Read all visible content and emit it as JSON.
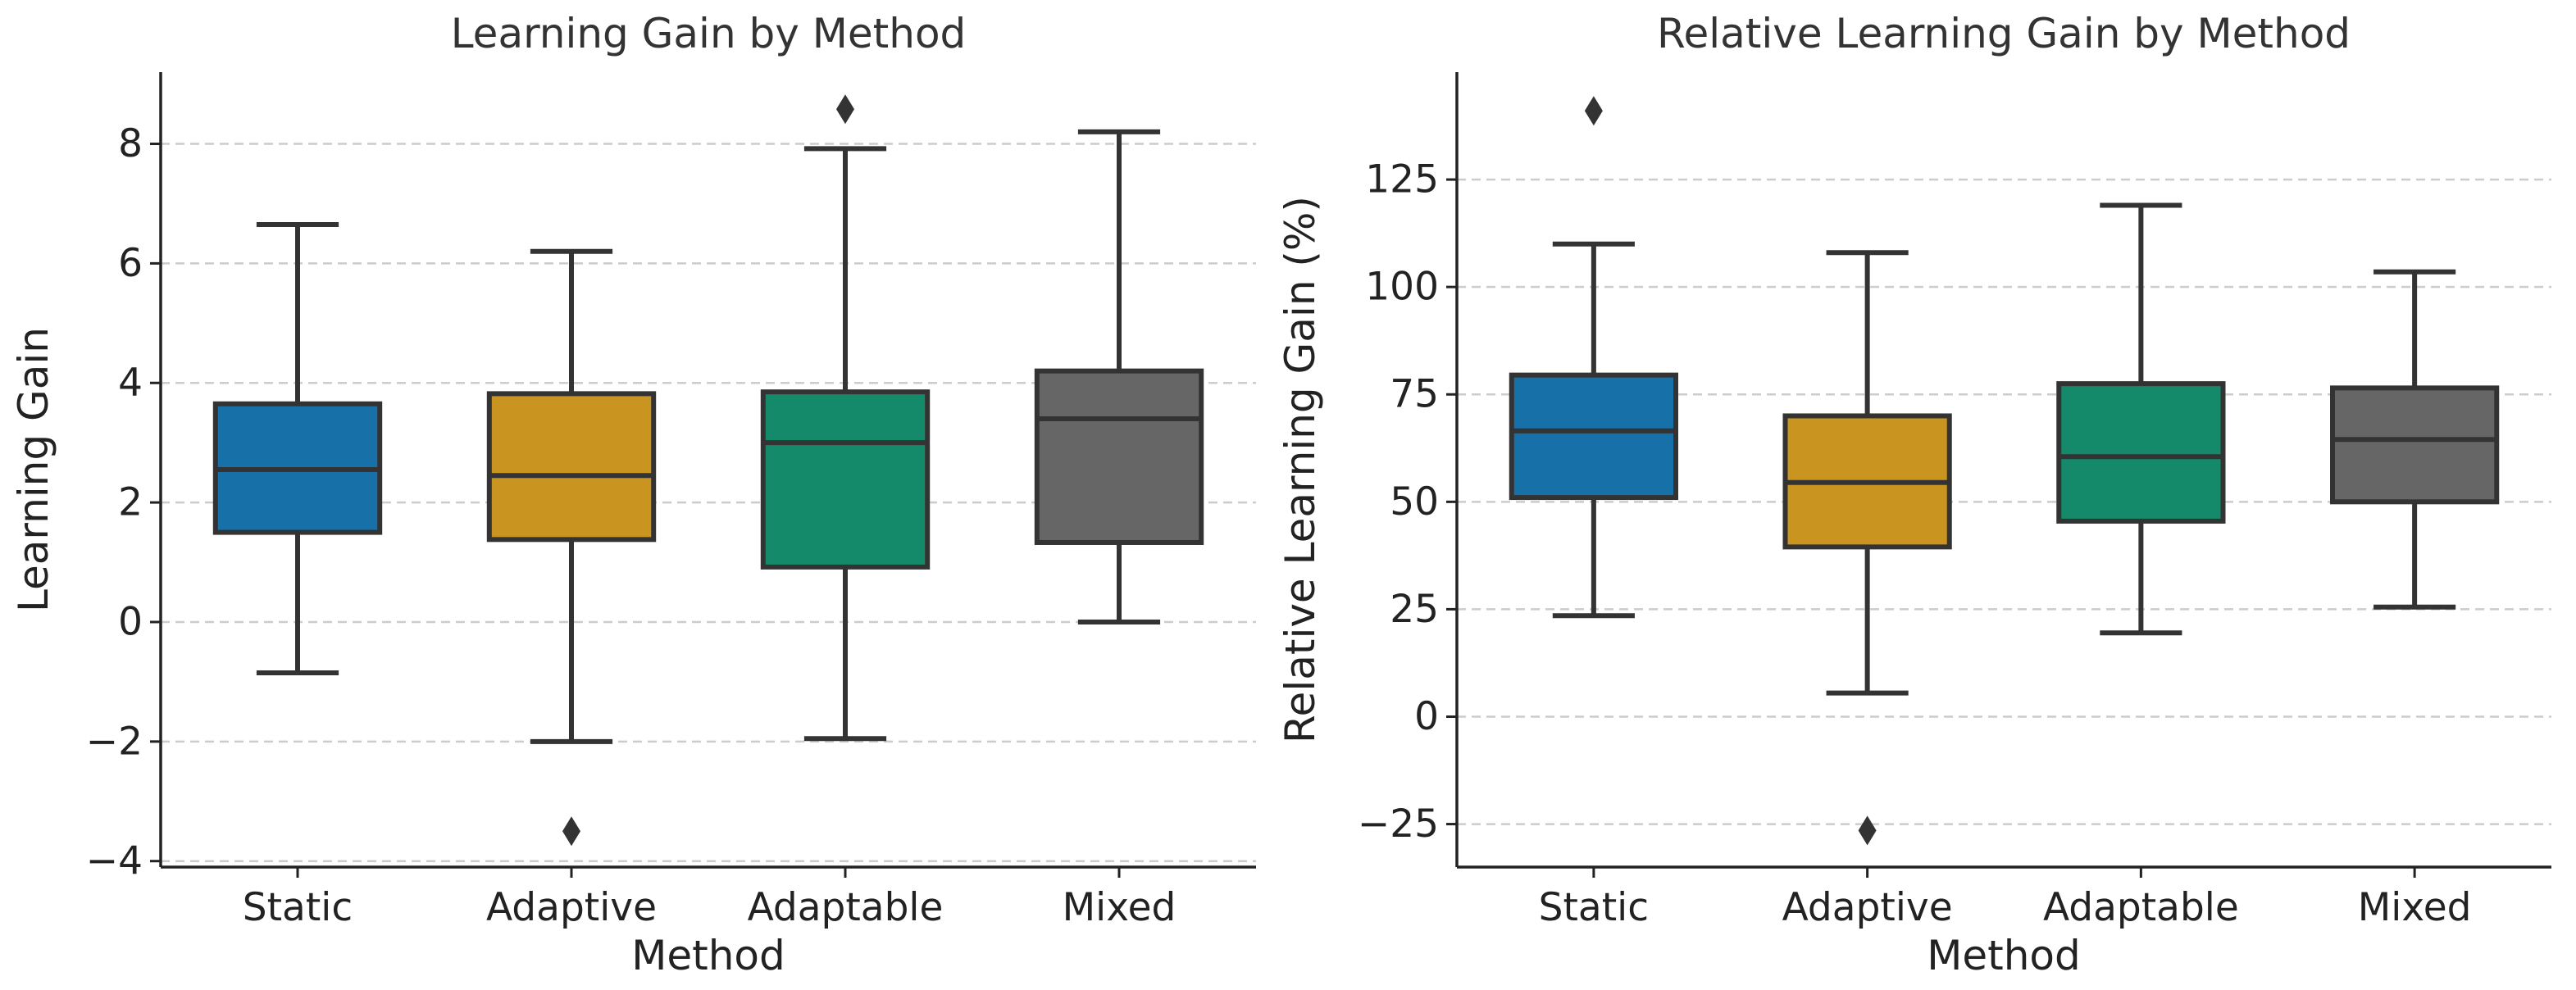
{
  "chart_data": [
    {
      "type": "box",
      "title": "Learning Gain by Method",
      "xlabel": "Method",
      "ylabel": "Learning Gain",
      "categories": [
        "Static",
        "Adaptive",
        "Adaptable",
        "Mixed"
      ],
      "ylim": [
        -4.1,
        9.2
      ],
      "yticks": [
        -4,
        -2,
        0,
        2,
        4,
        6,
        8
      ],
      "ytick_labels": [
        "−4",
        "−2",
        "0",
        "2",
        "4",
        "6",
        "8"
      ],
      "grid": true,
      "colors": [
        "#1770a8",
        "#c99420",
        "#158a6a",
        "#666666"
      ],
      "boxes": [
        {
          "whisker_low": -0.85,
          "q1": 1.5,
          "median": 2.55,
          "q3": 3.65,
          "whisker_high": 6.65,
          "outliers": []
        },
        {
          "whisker_low": -2.0,
          "q1": 1.38,
          "median": 2.45,
          "q3": 3.82,
          "whisker_high": 6.2,
          "outliers": [
            -3.5
          ]
        },
        {
          "whisker_low": -1.95,
          "q1": 0.92,
          "median": 3.0,
          "q3": 3.85,
          "whisker_high": 7.92,
          "outliers": [
            8.58
          ]
        },
        {
          "whisker_low": 0.0,
          "q1": 1.33,
          "median": 3.4,
          "q3": 4.2,
          "whisker_high": 8.2,
          "outliers": []
        }
      ]
    },
    {
      "type": "box",
      "title": "Relative Learning Gain by Method",
      "xlabel": "Method",
      "ylabel": "Relative Learning Gain (%)",
      "categories": [
        "Static",
        "Adaptive",
        "Adaptable",
        "Mixed"
      ],
      "ylim": [
        -35,
        150
      ],
      "yticks": [
        -25,
        0,
        25,
        50,
        75,
        100,
        125
      ],
      "ytick_labels": [
        "−25",
        "0",
        "25",
        "50",
        "75",
        "100",
        "125"
      ],
      "grid": true,
      "colors": [
        "#1770a8",
        "#c99420",
        "#158a6a",
        "#666666"
      ],
      "boxes": [
        {
          "whisker_low": 23.5,
          "q1": 51,
          "median": 66.5,
          "q3": 79.5,
          "whisker_high": 110,
          "outliers": [
            141
          ]
        },
        {
          "whisker_low": 5.5,
          "q1": 39.5,
          "median": 54.5,
          "q3": 70,
          "whisker_high": 108,
          "outliers": [
            -26.5
          ]
        },
        {
          "whisker_low": 19.5,
          "q1": 45.5,
          "median": 60.5,
          "q3": 77.5,
          "whisker_high": 119,
          "outliers": []
        },
        {
          "whisker_low": 25.5,
          "q1": 50,
          "median": 64.5,
          "q3": 76.5,
          "whisker_high": 103.5,
          "outliers": []
        }
      ]
    }
  ]
}
